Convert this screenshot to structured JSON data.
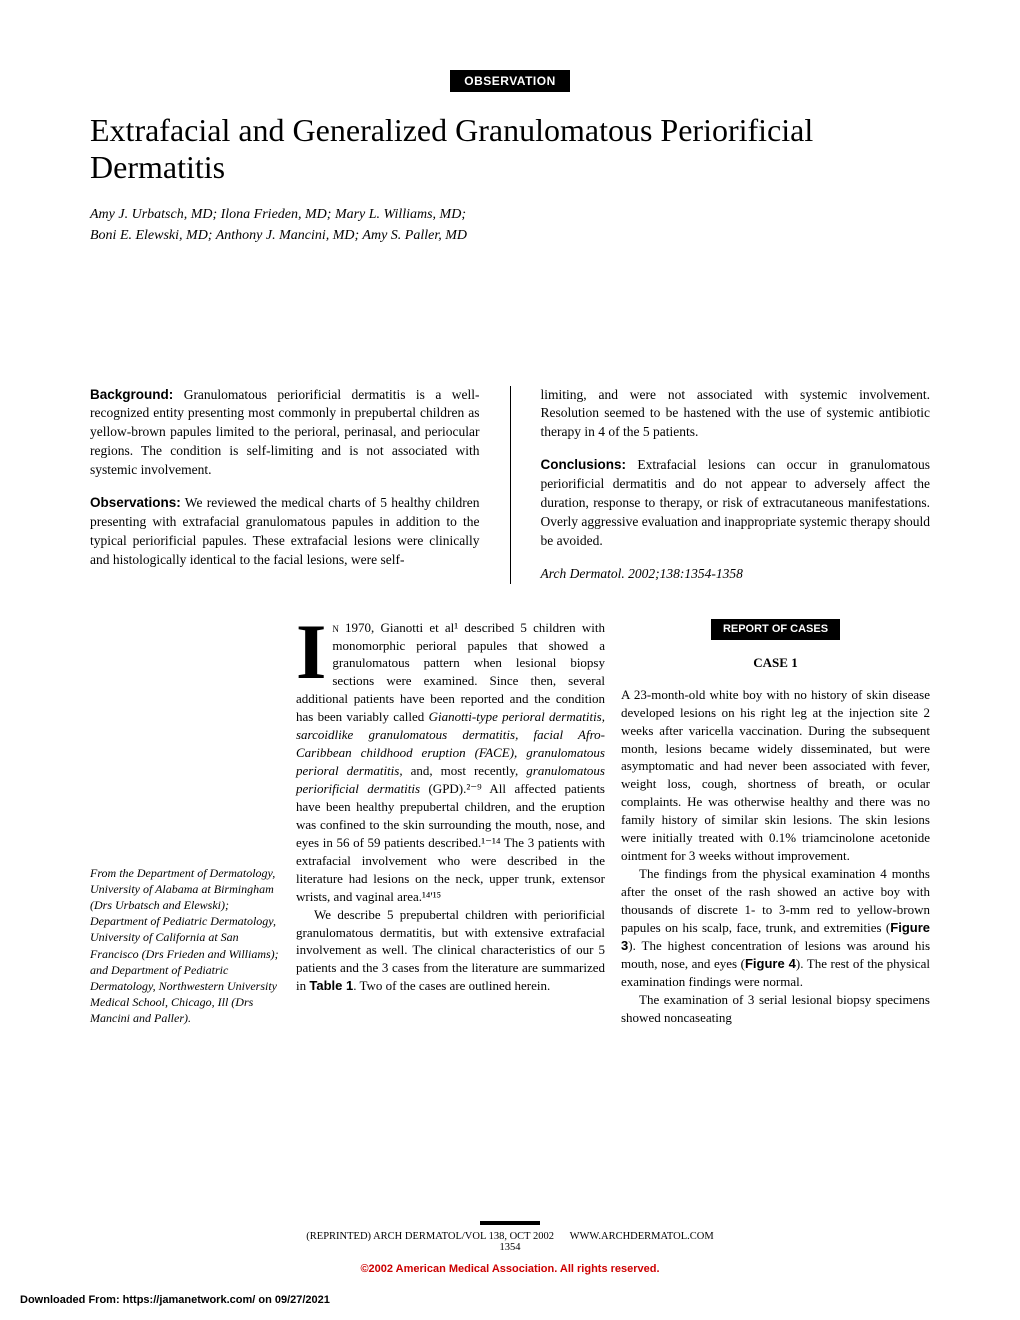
{
  "label": "OBSERVATION",
  "title": "Extrafacial and Generalized Granulomatous Periorificial Dermatitis",
  "authors_line1": "Amy J. Urbatsch, MD; Ilona Frieden, MD; Mary L. Williams, MD;",
  "authors_line2": "Boni E. Elewski, MD; Anthony J. Mancini, MD; Amy S. Paller, MD",
  "abstract": {
    "background_label": "Background:",
    "background": " Granulomatous periorificial dermatitis is a well-recognized entity presenting most commonly in prepubertal children as yellow-brown papules limited to the perioral, perinasal, and periocular regions. The condition is self-limiting and is not associated with systemic involvement.",
    "observations_label": "Observations:",
    "observations": " We reviewed the medical charts of 5 healthy children presenting with extrafacial granulomatous papules in addition to the typical periorificial papules. These extrafacial lesions were clinically and histologically identical to the facial lesions, were self-",
    "col2_continue": "limiting, and were not associated with systemic involvement. Resolution seemed to be hastened with the use of systemic antibiotic therapy in 4 of the 5 patients.",
    "conclusions_label": "Conclusions:",
    "conclusions": " Extrafacial lesions can occur in granulomatous periorificial dermatitis and do not appear to adversely affect the duration, response to therapy, or risk of extracutaneous manifestations. Overly aggressive evaluation and inappropriate systemic therapy should be avoided.",
    "citation": "Arch Dermatol. 2002;138:1354-1358"
  },
  "affiliation": "From the Department of Dermatology, University of Alabama at Birmingham (Drs Urbatsch and Elewski); Department of Pediatric Dermatology, University of California at San Francisco (Drs Frieden and Williams); and Department of Pediatric Dermatology, Northwestern University Medical School, Chicago, Ill (Drs Mancini and Paller).",
  "body": {
    "dropcap": "I",
    "intro_firstcaps": "n",
    "intro": " 1970, Gianotti et al¹ described 5 children with monomorphic perioral papules that showed a granulomatous pattern when lesional biopsy sections were examined. Since then, several additional patients have been reported and the condition has been variably called ",
    "terms": "Gianotti-type perioral dermatitis, sarcoidlike granulomatous dermatitis, facial Afro-Caribbean childhood eruption (FACE), granulomatous perioral dermatitis,",
    "intro2a": " and, most recently, ",
    "terms2": "granulomatous periorificial dermatitis",
    "intro2b": " (GPD).²⁻⁹ All affected patients have been healthy prepubertal children, and the eruption was confined to the skin surrounding the mouth, nose, and eyes in 56 of 59 patients described.¹⁻¹⁴ The 3 patients with extrafacial involvement who were described in the literature had lesions on the neck, upper trunk, extensor wrists, and vaginal area.¹⁴'¹⁵",
    "para2a": "We describe 5 prepubertal children with periorificial granulomatous dermatitis, but with extensive extrafacial involvement as well. The clinical characteristics of our 5 patients and the 3 cases from the literature are summarized in ",
    "table_ref": "Table 1",
    "para2b": ". Two of the cases are outlined herein.",
    "report_header": "REPORT OF CASES",
    "case_label": "CASE 1",
    "case1_p1": "A 23-month-old white boy with no history of skin disease developed lesions on his right leg at the injection site 2 weeks after varicella vaccination. During the subsequent month, lesions became widely disseminated, but were asymptomatic and had never been associated with fever, weight loss, cough, shortness of breath, or ocular complaints. He was otherwise healthy and there was no family history of similar skin lesions. The skin lesions were initially treated with 0.1% triamcinolone acetonide ointment for 3 weeks without improvement.",
    "case1_p2a": "The findings from the physical examination 4 months after the onset of the rash showed an active boy with thousands of discrete 1- to 3-mm red to yellow-brown papules on his scalp, face, trunk, and extremities (",
    "fig3": "Figure 3",
    "case1_p2b": "). The highest concentration of lesions was around his mouth, nose, and eyes (",
    "fig4": "Figure 4",
    "case1_p2c": "). The rest of the physical examination findings were normal.",
    "case1_p3": "The examination of 3 serial lesional biopsy specimens showed noncaseating"
  },
  "footer": {
    "reprint": "(REPRINTED) ARCH DERMATOL/VOL 138, OCT 2002",
    "url": "WWW.ARCHDERMATOL.COM",
    "page": "1354",
    "copyright": "©2002 American Medical Association. All rights reserved.",
    "download": "Downloaded From: https://jamanetwork.com/ on 09/27/2021"
  }
}
